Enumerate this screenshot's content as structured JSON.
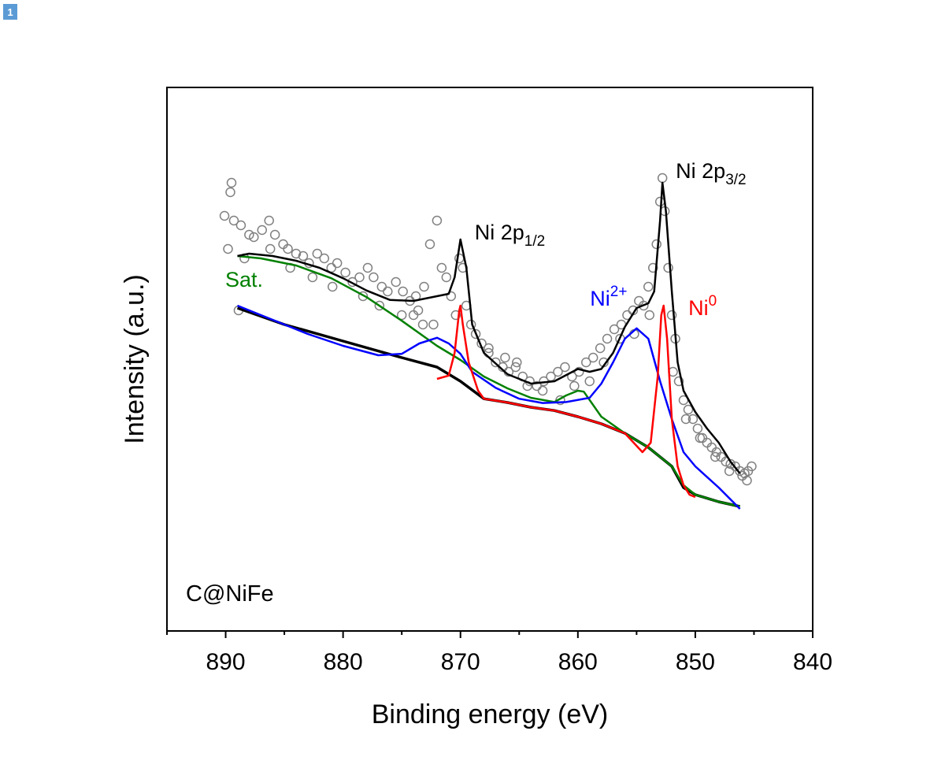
{
  "page_badge": "1",
  "chart_data": {
    "type": "scatter",
    "title": "",
    "xlabel": "Binding energy (eV)",
    "ylabel": "Intensity (a.u.)",
    "xlim": [
      895,
      840
    ],
    "ylim": [
      0,
      100
    ],
    "x_reversed": true,
    "xticks": [
      890,
      880,
      870,
      860,
      850,
      840
    ],
    "yticks_shown": false,
    "grid": false,
    "sample_label": "C@NiFe",
    "colors": {
      "points": "#808080",
      "envelope": "#000000",
      "background": "#000000",
      "sat": "#008000",
      "ni2": "#0000ff",
      "ni0": "#ff0000"
    },
    "annotations": [
      {
        "text": "Ni 2p",
        "sub": "1/2",
        "sup": "",
        "x": 870,
        "y": 76,
        "color": "#000000"
      },
      {
        "text": "Ni 2p",
        "sub": "3/2",
        "sup": "",
        "x": 853,
        "y": 89,
        "color": "#000000"
      },
      {
        "text": "Ni",
        "sub": "",
        "sup": "2+",
        "x": 854,
        "y": 62,
        "color": "#0000ff"
      },
      {
        "text": "Ni",
        "sub": "",
        "sup": "0",
        "x": 853,
        "y": 60,
        "color": "#ff0000"
      },
      {
        "text": "Sat.",
        "sub": "",
        "sup": "",
        "x": 884,
        "y": 66,
        "color": "#008000"
      }
    ],
    "series": [
      {
        "name": "Background",
        "style": "line",
        "x": [
          889,
          885,
          880,
          875,
          872,
          870,
          868,
          866,
          864,
          862,
          860,
          858,
          856,
          854,
          852,
          851,
          850,
          848,
          846.2
        ],
        "y": [
          61.5,
          58,
          54.5,
          51,
          49,
          46,
          42.3,
          41.5,
          40.5,
          39.8,
          38.5,
          37,
          35,
          32,
          28,
          23.5,
          22,
          20.5,
          19.5
        ]
      },
      {
        "name": "Envelope",
        "style": "line",
        "x": [
          889,
          888,
          886,
          884,
          882,
          880,
          878,
          876,
          874,
          872,
          871,
          870.5,
          870,
          869.5,
          869,
          868,
          866,
          864,
          862,
          860,
          859,
          858,
          857,
          856,
          855,
          854,
          853.5,
          853,
          852.8,
          852.5,
          852,
          851.5,
          851,
          850,
          849,
          848,
          847,
          846.2
        ],
        "y": [
          72.5,
          73,
          72.5,
          71.5,
          70,
          67.8,
          65.2,
          63.2,
          63,
          64,
          64.5,
          68,
          76,
          70,
          58,
          52,
          47.5,
          45.5,
          46,
          48.6,
          48,
          48.6,
          52,
          57.5,
          61.5,
          62.5,
          65,
          80,
          88,
          82,
          65,
          50,
          44,
          39.5,
          36,
          33,
          29,
          26.5
        ]
      },
      {
        "name": "Sat.",
        "style": "line",
        "x": [
          889,
          887,
          884,
          881,
          878,
          875,
          872,
          870,
          868,
          866,
          864,
          862,
          861,
          860,
          859.5,
          858,
          856,
          854,
          852,
          851,
          850,
          848,
          846.2
        ],
        "y": [
          72.5,
          72,
          70.5,
          67.8,
          63.8,
          58.8,
          53.5,
          50.5,
          47,
          44.5,
          42.5,
          41.6,
          43,
          44,
          43.8,
          38.5,
          35,
          32,
          28,
          24,
          22,
          20.5,
          19.5
        ]
      },
      {
        "name": "Ni2+",
        "style": "line",
        "x": [
          889,
          886,
          883,
          880,
          877,
          875,
          873.5,
          872,
          871,
          870,
          869,
          867,
          865,
          863,
          861,
          859,
          858,
          857,
          856,
          855,
          854,
          853,
          852,
          851,
          850,
          848,
          846.2
        ],
        "y": [
          62,
          59,
          56,
          53.5,
          51.5,
          51.8,
          54,
          55.2,
          54,
          51.8,
          48,
          44.6,
          42.3,
          41.4,
          41.6,
          42.5,
          45.5,
          50,
          55,
          57.2,
          55,
          46,
          38,
          31,
          28,
          23.5,
          19
        ]
      },
      {
        "name": "Ni0",
        "style": "line",
        "x": [
          872,
          871,
          870.5,
          870.1,
          870,
          869.8,
          869.3,
          868.5,
          868,
          866,
          864,
          862,
          860,
          858,
          856,
          854.5,
          853.8,
          853.2,
          852.9,
          852.7,
          852.4,
          852,
          851.5,
          851,
          850.5,
          850
        ],
        "y": [
          46.5,
          47.2,
          52,
          61,
          62,
          58,
          50,
          44,
          42.3,
          41.5,
          40.5,
          39.8,
          38.5,
          37,
          35,
          31,
          33,
          47,
          60,
          62,
          55,
          38,
          28,
          24,
          22,
          21.5
        ]
      },
      {
        "name": "Data",
        "style": "points",
        "x": [
          890.1,
          889.5,
          889.6,
          889.3,
          888.7,
          888.0,
          887.6,
          886.9,
          886.3,
          885.8,
          885.1,
          884.7,
          884.0,
          883.4,
          882.9,
          882.2,
          881.6,
          881.0,
          880.5,
          879.8,
          879.2,
          878.6,
          877.9,
          877.4,
          876.7,
          876.2,
          875.5,
          874.9,
          874.3,
          873.8,
          873.1,
          872.6,
          872.0,
          871.6,
          871.2,
          870.8,
          870.4,
          870.1,
          869.8,
          869.5,
          869.1,
          868.7,
          868.2,
          867.6,
          867.0,
          866.4,
          865.9,
          865.3,
          864.7,
          864.1,
          863.5,
          862.9,
          862.3,
          861.7,
          861.1,
          860.5,
          859.9,
          859.3,
          858.7,
          858.1,
          857.5,
          856.9,
          856.3,
          855.8,
          855.3,
          854.8,
          854.4,
          854.0,
          853.6,
          853.3,
          853.0,
          852.8,
          852.6,
          852.3,
          852.0,
          851.7,
          851.4,
          851.0,
          850.6,
          850.2,
          849.8,
          849.4,
          849.0,
          848.6,
          848.2,
          847.8,
          847.4,
          847.0,
          846.6,
          846.2,
          845.8,
          845.5,
          845.2,
          889.8,
          888.4,
          886.2,
          884.5,
          882.6,
          880.9,
          878.3,
          876.9,
          875.0,
          873.6,
          872.3,
          867.6,
          866.2,
          865.2,
          864.3,
          863.0,
          861.5,
          860.3,
          859.0,
          857.8,
          856.4,
          855.2,
          853.9,
          851.9,
          850.8,
          849.6,
          848.3,
          847.1,
          846.0,
          845.6,
          888.9,
          874.0,
          873.2
        ],
        "y": [
          81,
          88,
          86,
          80,
          79,
          77,
          76.5,
          78,
          80,
          77,
          75,
          74,
          73,
          72.5,
          71,
          73,
          72,
          70,
          71,
          69,
          67,
          68,
          70,
          68,
          66,
          65,
          67,
          65,
          63,
          64,
          66,
          75,
          80,
          70,
          68,
          64,
          60,
          72,
          70,
          62,
          58,
          56,
          54,
          53,
          50,
          49,
          48,
          49,
          47,
          46,
          45,
          46,
          47,
          48,
          49,
          47,
          48,
          50,
          51,
          53,
          55,
          57,
          58,
          60,
          61,
          63,
          62,
          66,
          70,
          75,
          84,
          89,
          82,
          70,
          60,
          55,
          46,
          42,
          40,
          38,
          36,
          34,
          33,
          32,
          31,
          30,
          29,
          28.5,
          28,
          27,
          26.5,
          27,
          28,
          74,
          72,
          74,
          70,
          68,
          66,
          64,
          62,
          60,
          61,
          58,
          52,
          51,
          50,
          45,
          44,
          42,
          45,
          46,
          50,
          55,
          56,
          60,
          48,
          38,
          34,
          30,
          27,
          26,
          25,
          61,
          60,
          58
        ]
      }
    ]
  }
}
